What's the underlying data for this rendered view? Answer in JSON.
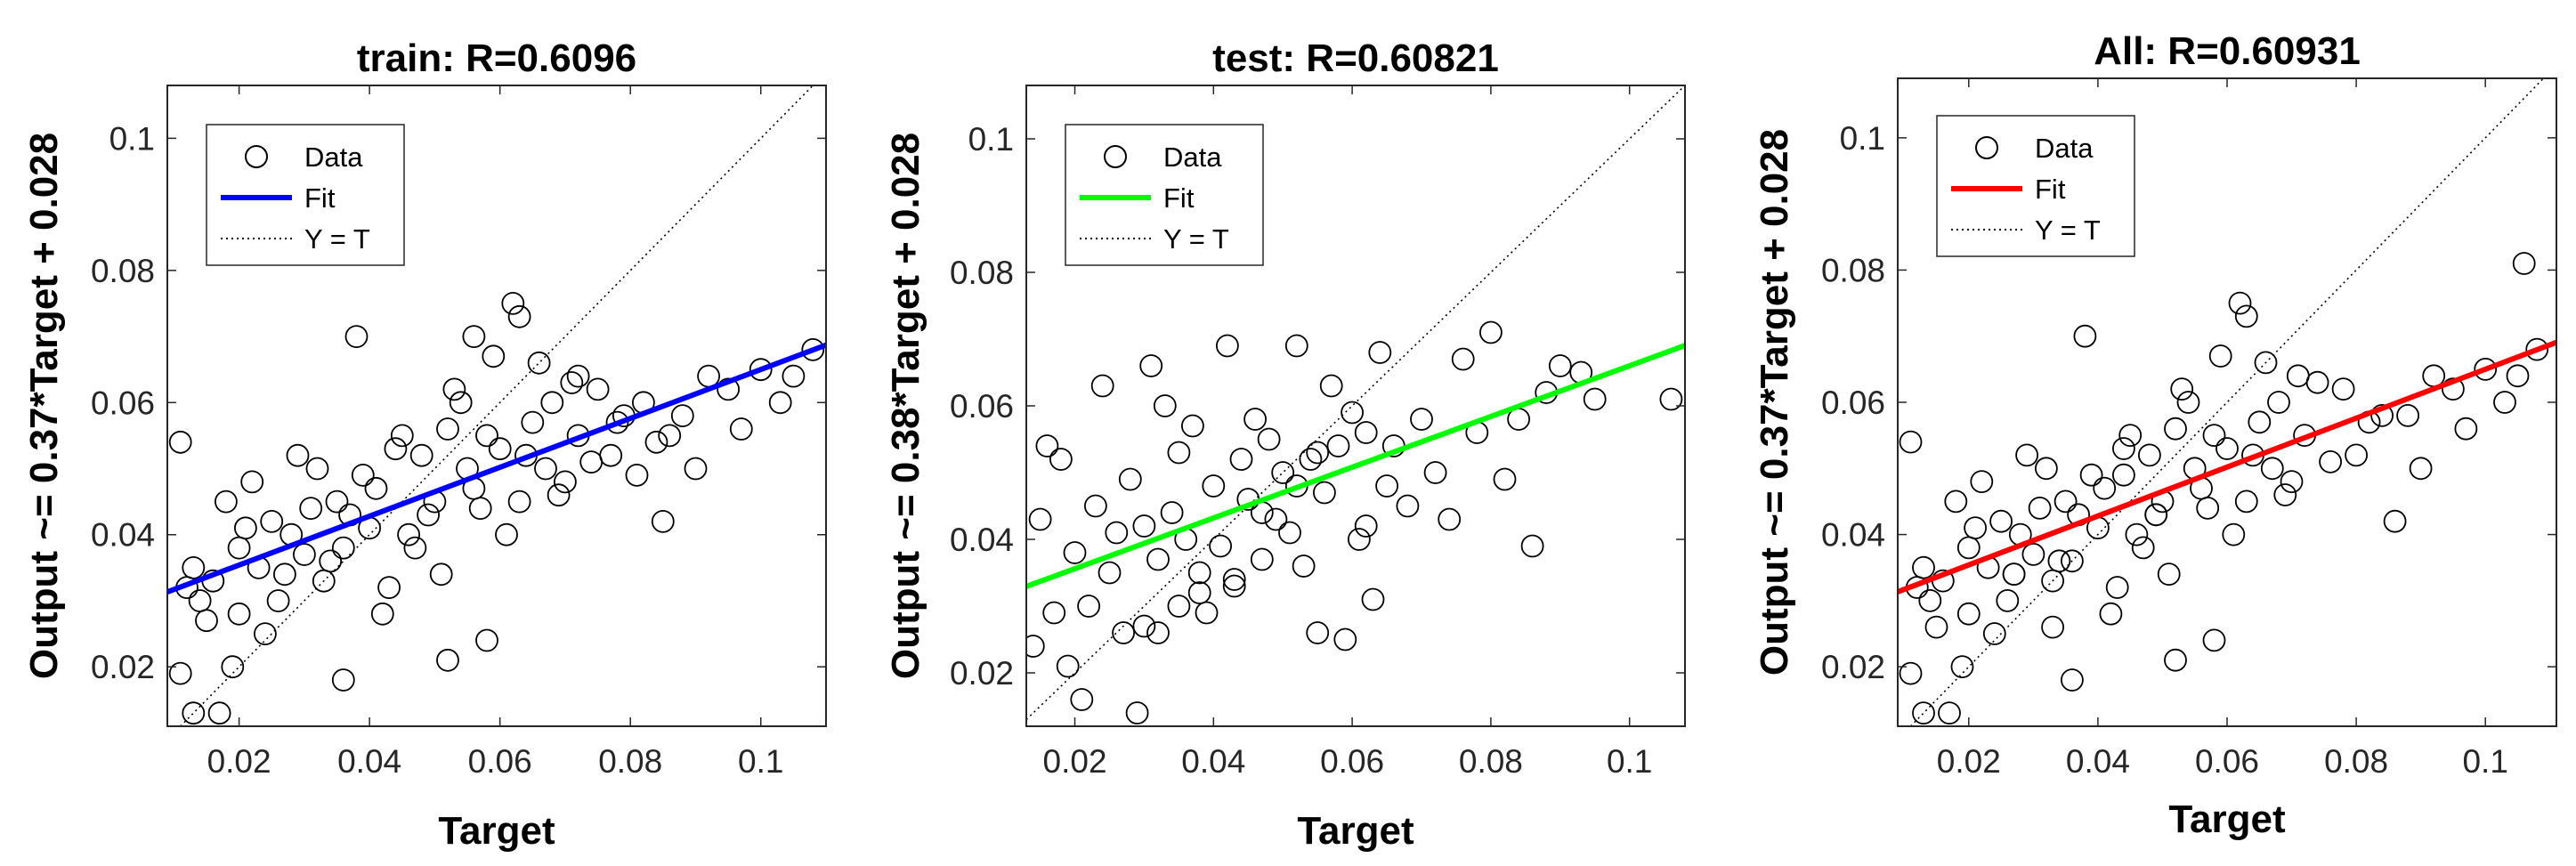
{
  "figure": {
    "colors": {
      "data": "#000000",
      "ideal": "#000000",
      "axes": "#262626"
    }
  },
  "chart_data": [
    {
      "type": "scatter",
      "title": "train: R=0.6096",
      "xlabel": "Target",
      "ylabel": "Output ~= 0.37*Target + 0.028",
      "xlim": [
        0.009,
        0.11
      ],
      "ylim": [
        0.011,
        0.108
      ],
      "xticks": [
        0.02,
        0.04,
        0.06,
        0.08,
        0.1
      ],
      "xtick_labels": [
        "0.02",
        "0.04",
        "0.06",
        "0.08",
        "0.1"
      ],
      "yticks": [
        0.02,
        0.04,
        0.06,
        0.08,
        0.1
      ],
      "ytick_labels": [
        "0.02",
        "0.04",
        "0.06",
        "0.08",
        "0.1"
      ],
      "grid": false,
      "legend": {
        "placement": "top-left",
        "entries": [
          "Data",
          "Fit",
          "Y = T"
        ]
      },
      "fit": {
        "slope": 0.37,
        "intercept": 0.028,
        "color": "#0000ff"
      },
      "series": [
        {
          "name": "Data",
          "marker": "open-circle",
          "x": [
            0.011,
            0.011,
            0.012,
            0.013,
            0.013,
            0.014,
            0.016,
            0.017,
            0.018,
            0.019,
            0.02,
            0.022,
            0.023,
            0.025,
            0.026,
            0.028,
            0.03,
            0.032,
            0.033,
            0.035,
            0.036,
            0.037,
            0.038,
            0.04,
            0.041,
            0.043,
            0.045,
            0.046,
            0.048,
            0.05,
            0.052,
            0.054,
            0.055,
            0.056,
            0.058,
            0.06,
            0.062,
            0.063,
            0.065,
            0.067,
            0.068,
            0.07,
            0.072,
            0.075,
            0.077,
            0.079,
            0.082,
            0.085,
            0.088,
            0.092,
            0.095,
            0.097,
            0.1,
            0.103,
            0.105,
            0.108,
            0.02,
            0.024,
            0.027,
            0.031,
            0.034,
            0.039,
            0.042,
            0.044,
            0.047,
            0.051,
            0.053,
            0.057,
            0.059,
            0.061,
            0.064,
            0.066,
            0.069,
            0.071,
            0.074,
            0.078,
            0.081,
            0.086,
            0.09,
            0.015,
            0.021,
            0.029,
            0.036,
            0.049,
            0.056,
            0.063,
            0.072,
            0.084,
            0.058,
            0.052
          ],
          "y": [
            0.054,
            0.019,
            0.032,
            0.013,
            0.035,
            0.03,
            0.033,
            0.013,
            0.045,
            0.02,
            0.038,
            0.048,
            0.035,
            0.042,
            0.03,
            0.04,
            0.037,
            0.05,
            0.033,
            0.045,
            0.038,
            0.043,
            0.07,
            0.041,
            0.047,
            0.032,
            0.055,
            0.04,
            0.052,
            0.045,
            0.056,
            0.06,
            0.05,
            0.047,
            0.055,
            0.053,
            0.075,
            0.045,
            0.057,
            0.05,
            0.06,
            0.048,
            0.055,
            0.062,
            0.052,
            0.058,
            0.06,
            0.042,
            0.058,
            0.064,
            0.062,
            0.056,
            0.065,
            0.06,
            0.064,
            0.068,
            0.028,
            0.025,
            0.034,
            0.044,
            0.036,
            0.049,
            0.028,
            0.053,
            0.038,
            0.034,
            0.062,
            0.044,
            0.067,
            0.04,
            0.052,
            0.066,
            0.046,
            0.063,
            0.051,
            0.057,
            0.049,
            0.055,
            0.05,
            0.027,
            0.041,
            0.052,
            0.018,
            0.043,
            0.07,
            0.073,
            0.064,
            0.054,
            0.024,
            0.021
          ]
        }
      ]
    },
    {
      "type": "scatter",
      "title": "test: R=0.60821",
      "xlabel": "Target",
      "ylabel": "Output ~= 0.38*Target + 0.028",
      "xlim": [
        0.013,
        0.108
      ],
      "ylim": [
        0.012,
        0.108
      ],
      "xticks": [
        0.02,
        0.04,
        0.06,
        0.08,
        0.1
      ],
      "xtick_labels": [
        "0.02",
        "0.04",
        "0.06",
        "0.08",
        "0.1"
      ],
      "yticks": [
        0.02,
        0.04,
        0.06,
        0.08,
        0.1
      ],
      "ytick_labels": [
        "0.02",
        "0.04",
        "0.06",
        "0.08",
        "0.1"
      ],
      "grid": false,
      "legend": {
        "placement": "top-left",
        "entries": [
          "Data",
          "Fit",
          "Y = T"
        ]
      },
      "fit": {
        "slope": 0.38,
        "intercept": 0.028,
        "color": "#00ff00"
      },
      "series": [
        {
          "name": "Data",
          "marker": "open-circle",
          "x": [
            0.014,
            0.015,
            0.016,
            0.017,
            0.018,
            0.019,
            0.02,
            0.021,
            0.022,
            0.023,
            0.024,
            0.025,
            0.026,
            0.027,
            0.028,
            0.029,
            0.03,
            0.031,
            0.032,
            0.033,
            0.034,
            0.035,
            0.036,
            0.037,
            0.038,
            0.039,
            0.04,
            0.041,
            0.042,
            0.043,
            0.044,
            0.045,
            0.046,
            0.047,
            0.048,
            0.049,
            0.05,
            0.051,
            0.052,
            0.053,
            0.054,
            0.055,
            0.056,
            0.057,
            0.058,
            0.059,
            0.06,
            0.061,
            0.062,
            0.063,
            0.064,
            0.065,
            0.066,
            0.068,
            0.07,
            0.072,
            0.074,
            0.076,
            0.078,
            0.08,
            0.082,
            0.084,
            0.086,
            0.088,
            0.09,
            0.093,
            0.095,
            0.106,
            0.03,
            0.032,
            0.035,
            0.038,
            0.043,
            0.047,
            0.052,
            0.055,
            0.062
          ],
          "y": [
            0.024,
            0.043,
            0.054,
            0.029,
            0.052,
            0.021,
            0.038,
            0.016,
            0.03,
            0.045,
            0.063,
            0.035,
            0.041,
            0.026,
            0.049,
            0.014,
            0.042,
            0.066,
            0.037,
            0.06,
            0.044,
            0.053,
            0.04,
            0.057,
            0.035,
            0.029,
            0.048,
            0.039,
            0.069,
            0.033,
            0.052,
            0.046,
            0.058,
            0.037,
            0.055,
            0.043,
            0.05,
            0.041,
            0.069,
            0.036,
            0.052,
            0.026,
            0.047,
            0.063,
            0.054,
            0.025,
            0.059,
            0.04,
            0.056,
            0.031,
            0.068,
            0.048,
            0.054,
            0.045,
            0.058,
            0.05,
            0.043,
            0.067,
            0.056,
            0.071,
            0.049,
            0.058,
            0.039,
            0.062,
            0.066,
            0.065,
            0.061,
            0.061,
            0.027,
            0.026,
            0.03,
            0.032,
            0.034,
            0.044,
            0.048,
            0.053,
            0.042
          ]
        }
      ]
    },
    {
      "type": "scatter",
      "title": "All: R=0.60931",
      "xlabel": "Target",
      "ylabel": "Output ~= 0.37*Target + 0.028",
      "xlim": [
        0.009,
        0.111
      ],
      "ylim": [
        0.011,
        0.109
      ],
      "xticks": [
        0.02,
        0.04,
        0.06,
        0.08,
        0.1
      ],
      "xtick_labels": [
        "0.02",
        "0.04",
        "0.06",
        "0.08",
        "0.1"
      ],
      "yticks": [
        0.02,
        0.04,
        0.06,
        0.08,
        0.1
      ],
      "ytick_labels": [
        "0.02",
        "0.04",
        "0.06",
        "0.08",
        "0.1"
      ],
      "grid": false,
      "legend": {
        "placement": "top-left",
        "entries": [
          "Data",
          "Fit",
          "Y = T"
        ]
      },
      "fit": {
        "slope": 0.37,
        "intercept": 0.028,
        "color": "#ff0000"
      },
      "series": [
        {
          "name": "Data",
          "marker": "open-circle",
          "x": [
            0.011,
            0.011,
            0.012,
            0.013,
            0.013,
            0.014,
            0.015,
            0.016,
            0.017,
            0.018,
            0.019,
            0.02,
            0.021,
            0.022,
            0.023,
            0.024,
            0.025,
            0.026,
            0.027,
            0.028,
            0.029,
            0.03,
            0.031,
            0.032,
            0.033,
            0.034,
            0.035,
            0.036,
            0.037,
            0.038,
            0.039,
            0.04,
            0.041,
            0.042,
            0.043,
            0.044,
            0.045,
            0.046,
            0.047,
            0.048,
            0.049,
            0.05,
            0.051,
            0.052,
            0.053,
            0.054,
            0.055,
            0.056,
            0.057,
            0.058,
            0.059,
            0.06,
            0.061,
            0.062,
            0.063,
            0.064,
            0.065,
            0.066,
            0.067,
            0.068,
            0.069,
            0.07,
            0.072,
            0.074,
            0.076,
            0.078,
            0.08,
            0.082,
            0.084,
            0.086,
            0.088,
            0.09,
            0.092,
            0.095,
            0.097,
            0.1,
            0.103,
            0.105,
            0.108,
            0.106,
            0.02,
            0.027,
            0.033,
            0.036,
            0.044,
            0.049,
            0.052,
            0.058,
            0.063,
            0.071
          ],
          "y": [
            0.054,
            0.019,
            0.032,
            0.013,
            0.035,
            0.03,
            0.026,
            0.033,
            0.013,
            0.045,
            0.02,
            0.038,
            0.041,
            0.048,
            0.035,
            0.025,
            0.042,
            0.03,
            0.034,
            0.04,
            0.052,
            0.037,
            0.044,
            0.05,
            0.033,
            0.036,
            0.045,
            0.018,
            0.043,
            0.07,
            0.049,
            0.041,
            0.047,
            0.028,
            0.032,
            0.053,
            0.055,
            0.04,
            0.038,
            0.052,
            0.043,
            0.045,
            0.034,
            0.056,
            0.062,
            0.06,
            0.05,
            0.047,
            0.044,
            0.055,
            0.067,
            0.053,
            0.04,
            0.075,
            0.045,
            0.052,
            0.057,
            0.066,
            0.05,
            0.06,
            0.046,
            0.048,
            0.055,
            0.063,
            0.051,
            0.062,
            0.052,
            0.057,
            0.058,
            0.042,
            0.058,
            0.05,
            0.064,
            0.062,
            0.056,
            0.065,
            0.06,
            0.064,
            0.068,
            0.081,
            0.028,
            0.034,
            0.026,
            0.036,
            0.049,
            0.043,
            0.021,
            0.024,
            0.073,
            0.064
          ]
        }
      ]
    }
  ]
}
